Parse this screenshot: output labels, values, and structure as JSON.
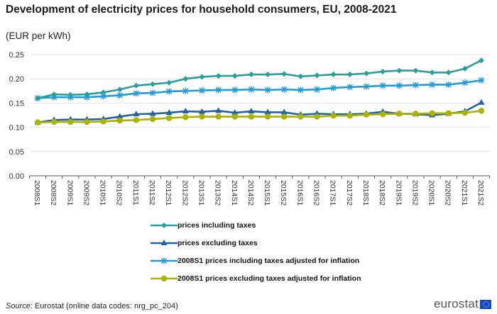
{
  "chart_data": {
    "type": "line",
    "title": "Development of electricity prices for household consumers, EU, 2008-2021",
    "subtitle": "(EUR per kWh)",
    "xlabel": "",
    "ylabel": "EUR per kWh",
    "ylim": [
      0,
      0.25
    ],
    "yticks": [
      0.0,
      0.05,
      0.1,
      0.15,
      0.2,
      0.25
    ],
    "ytick_labels": [
      "0.00",
      "0.05",
      "0.10",
      "0.15",
      "0.20",
      "0.25"
    ],
    "grid": true,
    "legend_position": "bottom",
    "categories": [
      "2008S1",
      "2008S2",
      "2009S1",
      "2009S2",
      "2010S1",
      "2010S2",
      "2011S1",
      "2011S2",
      "2012S1",
      "2012S2",
      "2013S1",
      "2013S2",
      "2014S1",
      "2014S2",
      "2015S1",
      "2015S2",
      "2016S1",
      "2016S2",
      "2017S1",
      "2017S2",
      "2018S1",
      "2018S2",
      "2019S1",
      "2019S2",
      "2020S1",
      "2020S2",
      "2021S1",
      "2021S2"
    ],
    "series": [
      {
        "name": "prices including taxes",
        "color": "#2a9e99",
        "marker": "diamond",
        "values": [
          0.16,
          0.168,
          0.167,
          0.168,
          0.172,
          0.178,
          0.186,
          0.189,
          0.192,
          0.2,
          0.204,
          0.206,
          0.206,
          0.209,
          0.209,
          0.21,
          0.205,
          0.207,
          0.209,
          0.209,
          0.211,
          0.215,
          0.217,
          0.217,
          0.213,
          0.213,
          0.221,
          0.238
        ]
      },
      {
        "name": "prices excluding taxes",
        "color": "#2360a8",
        "marker": "triangle",
        "values": [
          0.11,
          0.115,
          0.116,
          0.116,
          0.117,
          0.122,
          0.127,
          0.128,
          0.13,
          0.133,
          0.132,
          0.134,
          0.13,
          0.133,
          0.131,
          0.131,
          0.126,
          0.128,
          0.127,
          0.127,
          0.128,
          0.132,
          0.128,
          0.127,
          0.125,
          0.128,
          0.133,
          0.151
        ]
      },
      {
        "name": "2008S1 prices including taxes adjusted for inflation",
        "color": "#1f9bd7",
        "marker": "star",
        "values": [
          0.16,
          0.162,
          0.162,
          0.162,
          0.164,
          0.166,
          0.17,
          0.171,
          0.174,
          0.175,
          0.176,
          0.177,
          0.177,
          0.178,
          0.177,
          0.178,
          0.177,
          0.178,
          0.181,
          0.183,
          0.184,
          0.186,
          0.186,
          0.187,
          0.188,
          0.188,
          0.192,
          0.197
        ]
      },
      {
        "name": "2008S1 prices excluding taxes adjusted for inflation",
        "color": "#a9b300",
        "marker": "circle",
        "values": [
          0.11,
          0.111,
          0.111,
          0.111,
          0.112,
          0.114,
          0.115,
          0.117,
          0.119,
          0.121,
          0.122,
          0.122,
          0.122,
          0.122,
          0.122,
          0.122,
          0.122,
          0.122,
          0.124,
          0.124,
          0.126,
          0.127,
          0.128,
          0.128,
          0.129,
          0.129,
          0.13,
          0.134
        ]
      }
    ]
  },
  "footer": {
    "source_label": "Source",
    "source_text": ": Eurostat (online data codes: nrg_pc_204)",
    "logo_text": "eurostat"
  }
}
